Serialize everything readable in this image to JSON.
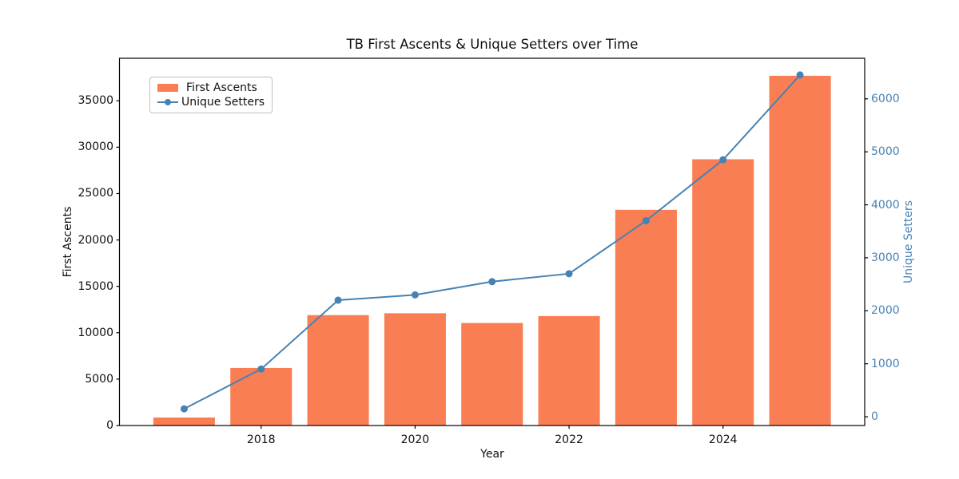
{
  "chart_data": {
    "type": "combo",
    "title": "TB First Ascents & Unique Setters over Time",
    "xlabel": "Year",
    "ylabel_left": "First Ascents",
    "ylabel_right": "Unique Setters",
    "x": [
      2017,
      2018,
      2019,
      2020,
      2021,
      2022,
      2023,
      2024,
      2025
    ],
    "series": [
      {
        "name": "First Ascents",
        "type": "bar",
        "axis": "left",
        "color": "#FA7E54",
        "values": [
          860,
          6200,
          11900,
          12100,
          11050,
          11800,
          23250,
          28700,
          37700
        ]
      },
      {
        "name": "Unique Setters",
        "type": "line",
        "axis": "right",
        "color": "#4682B4",
        "values": [
          150,
          900,
          2200,
          2300,
          2550,
          2700,
          3700,
          4850,
          6450
        ]
      }
    ],
    "x_ticks": [
      2018,
      2020,
      2022,
      2024
    ],
    "y_ticks_left": [
      0,
      5000,
      10000,
      15000,
      20000,
      25000,
      30000,
      35000
    ],
    "y_ticks_right": [
      0,
      1000,
      2000,
      3000,
      4000,
      5000,
      6000
    ],
    "xlim": [
      2016.16,
      2025.84
    ],
    "ylim_left": [
      0,
      39585
    ],
    "ylim_right": [
      -165,
      6765
    ],
    "bar_width": 0.8,
    "grid": false,
    "legend": {
      "position": "upper left",
      "labels": [
        "First Ascents",
        "Unique Setters"
      ]
    },
    "right_axis_color": "#4682B4",
    "text_color": "#111111",
    "spine_color": "#000000"
  }
}
